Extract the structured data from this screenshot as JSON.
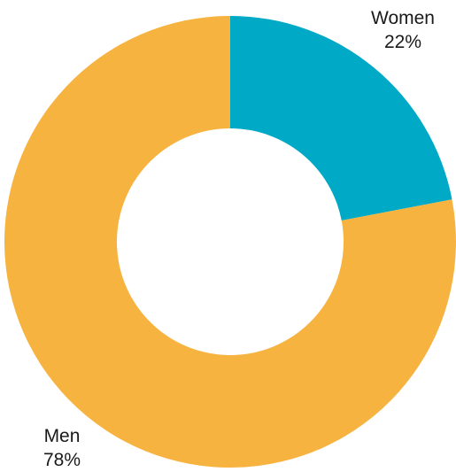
{
  "chart_data": {
    "type": "pie",
    "variant": "donut",
    "title": "",
    "slices": [
      {
        "label": "Women",
        "value": 22,
        "value_label": "22%",
        "color": "#00A9C6"
      },
      {
        "label": "Men",
        "value": 78,
        "value_label": "78%",
        "color": "#F7B340"
      }
    ]
  }
}
